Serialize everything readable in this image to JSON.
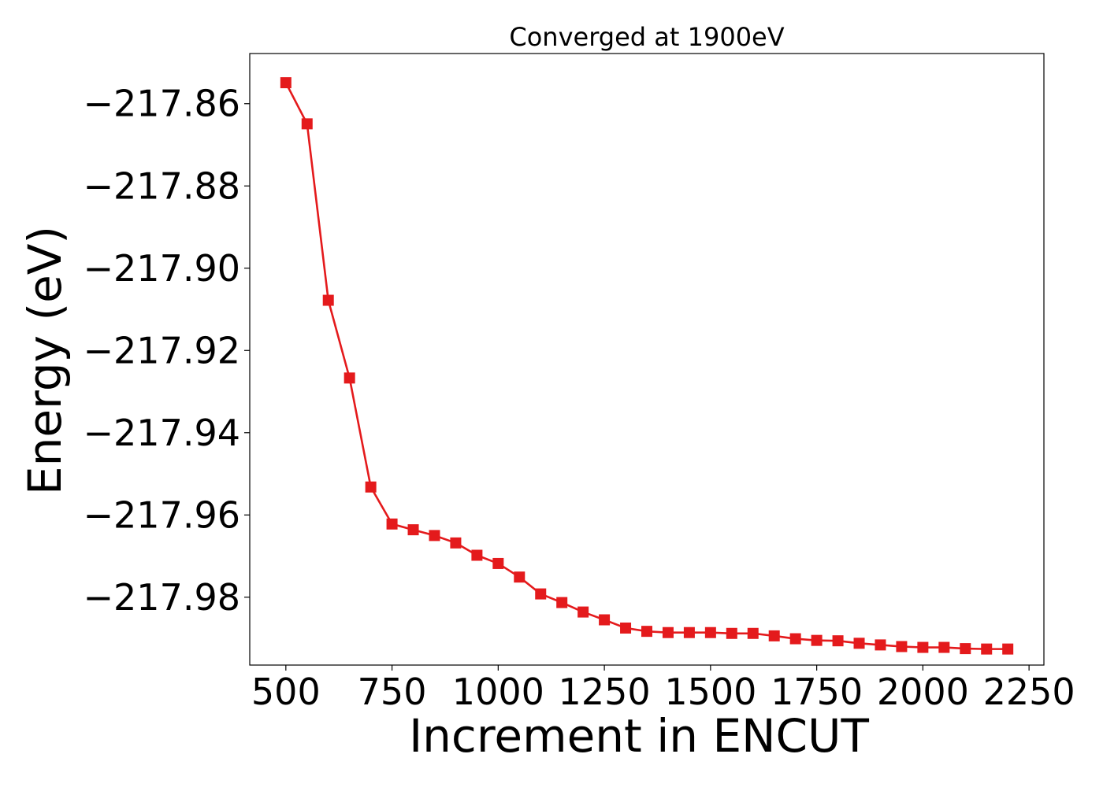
{
  "chart_data": {
    "type": "line",
    "title": "Converged at 1900eV",
    "xlabel": "Increment in ENCUT",
    "ylabel": "Energy (eV)",
    "xlim": [
      415,
      2285
    ],
    "ylim": [
      -217.9965,
      -217.8478
    ],
    "x_ticks": [
      500,
      750,
      1000,
      1250,
      1500,
      1750,
      2000,
      2250
    ],
    "y_ticks": [
      -217.86,
      -217.88,
      -217.9,
      -217.92,
      -217.94,
      -217.96,
      -217.98
    ],
    "y_tick_labels": [
      "−217.86",
      "−217.88",
      "−217.90",
      "−217.92",
      "−217.94",
      "−217.96",
      "−217.98"
    ],
    "grid": false,
    "series": [
      {
        "marker": "square",
        "color": "#e41a1c",
        "x": [
          500,
          550,
          600,
          650,
          700,
          750,
          800,
          850,
          900,
          950,
          1000,
          1050,
          1100,
          1150,
          1200,
          1250,
          1300,
          1350,
          1400,
          1450,
          1500,
          1550,
          1600,
          1650,
          1700,
          1750,
          1800,
          1850,
          1900,
          1950,
          2000,
          2050,
          2100,
          2150,
          2200
        ],
        "y": [
          -217.8549,
          -217.8649,
          -217.9078,
          -217.9267,
          -217.9532,
          -217.9622,
          -217.9636,
          -217.965,
          -217.9668,
          -217.9698,
          -217.9718,
          -217.9751,
          -217.9792,
          -217.9813,
          -217.9836,
          -217.9855,
          -217.9875,
          -217.9883,
          -217.9886,
          -217.9886,
          -217.9886,
          -217.9888,
          -217.9888,
          -217.9894,
          -217.9901,
          -217.9905,
          -217.9906,
          -217.9912,
          -217.9916,
          -217.992,
          -217.9922,
          -217.9922,
          -217.9925,
          -217.9926,
          -217.9926
        ]
      }
    ]
  }
}
